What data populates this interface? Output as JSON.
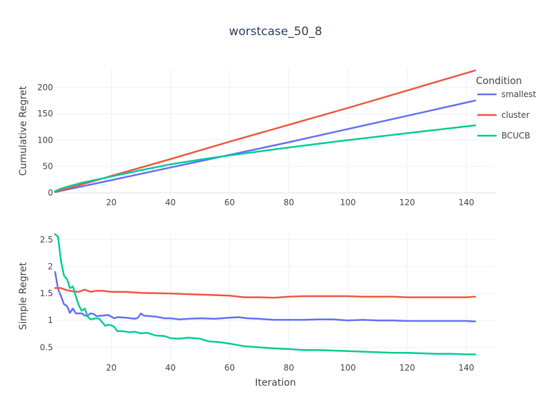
{
  "chart_data": {
    "type": "line",
    "title": "worstcase_50_8",
    "legend": {
      "title": "Condition",
      "placement": "top-right"
    },
    "colors": {
      "smallest": "#636efa",
      "cluster": "#ef553b",
      "BCUCB": "#00cc96"
    },
    "subplots": [
      {
        "ylabel": "Cumulative Regret",
        "xlim": [
          1,
          150
        ],
        "ylim": [
          0,
          235
        ],
        "xticks": [
          20,
          40,
          60,
          80,
          100,
          120,
          140
        ],
        "yticks": [
          0,
          50,
          100,
          150,
          200
        ],
        "grid": true,
        "series": [
          {
            "name": "smallest",
            "x": [
              1,
              20,
              40,
              60,
              80,
              100,
              120,
              143
            ],
            "values": [
              1.5,
              24,
              48,
              72,
              96,
              121,
              146,
              175
            ]
          },
          {
            "name": "cluster",
            "x": [
              1,
              20,
              40,
              60,
              80,
              100,
              120,
              143
            ],
            "values": [
              1.5,
              32,
              64,
              97,
              129,
              161,
              194,
              232
            ]
          },
          {
            "name": "BCUCB",
            "x": [
              1,
              3,
              6,
              10,
              15,
              20,
              30,
              40,
              50,
              60,
              80,
              100,
              120,
              143
            ],
            "values": [
              3,
              8,
              13,
              19,
              25,
              31,
              43,
              54,
              63,
              71,
              86,
              100,
              113,
              128
            ]
          }
        ]
      },
      {
        "ylabel": "Simple Regret",
        "xlabel": "Iteration",
        "xlim": [
          1,
          150
        ],
        "ylim": [
          0.3,
          2.6
        ],
        "xticks": [
          20,
          40,
          60,
          80,
          100,
          120,
          140
        ],
        "yticks": [
          0.5,
          1,
          1.5,
          2,
          2.5
        ],
        "ytick_labels": [
          "0.5",
          "1",
          "1.5",
          "2",
          "2.5"
        ],
        "grid": true,
        "series": [
          {
            "name": "smallest",
            "x": [
              1,
              2,
              3,
              4,
              5,
              6,
              7,
              8,
              10,
              11,
              12,
              13,
              14,
              15,
              17,
              19,
              21,
              22,
              25,
              28,
              29,
              30,
              31,
              35,
              38,
              40,
              43,
              46,
              50,
              55,
              60,
              63,
              66,
              70,
              75,
              80,
              85,
              90,
              95,
              100,
              105,
              110,
              115,
              120,
              125,
              130,
              135,
              140,
              143
            ],
            "values": [
              1.9,
              1.58,
              1.45,
              1.3,
              1.27,
              1.14,
              1.22,
              1.13,
              1.13,
              1.09,
              1.09,
              1.13,
              1.12,
              1.08,
              1.09,
              1.1,
              1.04,
              1.06,
              1.05,
              1.03,
              1.05,
              1.13,
              1.09,
              1.07,
              1.04,
              1.04,
              1.02,
              1.03,
              1.04,
              1.03,
              1.05,
              1.06,
              1.04,
              1.03,
              1.01,
              1.01,
              1.01,
              1.02,
              1.02,
              1.0,
              1.01,
              1.0,
              1.0,
              0.99,
              0.99,
              0.99,
              0.99,
              0.99,
              0.98
            ]
          },
          {
            "name": "cluster",
            "x": [
              1,
              3,
              5,
              7,
              9,
              11,
              13,
              15,
              17,
              20,
              25,
              30,
              40,
              50,
              60,
              65,
              70,
              75,
              80,
              85,
              90,
              95,
              100,
              105,
              110,
              115,
              120,
              125,
              130,
              135,
              140,
              143
            ],
            "values": [
              1.6,
              1.6,
              1.56,
              1.54,
              1.53,
              1.57,
              1.53,
              1.55,
              1.55,
              1.53,
              1.53,
              1.51,
              1.5,
              1.48,
              1.46,
              1.43,
              1.43,
              1.42,
              1.44,
              1.45,
              1.45,
              1.45,
              1.45,
              1.44,
              1.44,
              1.44,
              1.43,
              1.43,
              1.43,
              1.43,
              1.43,
              1.44
            ]
          },
          {
            "name": "BCUCB",
            "x": [
              1,
              2,
              3,
              4,
              5,
              6,
              7,
              8,
              9,
              10,
              11,
              12,
              13,
              14,
              15,
              16,
              17,
              18,
              19,
              20,
              21,
              22,
              24,
              26,
              28,
              30,
              32,
              35,
              38,
              40,
              43,
              46,
              50,
              53,
              56,
              60,
              65,
              70,
              75,
              80,
              85,
              90,
              95,
              100,
              105,
              110,
              115,
              120,
              125,
              130,
              135,
              140,
              143
            ],
            "values": [
              2.6,
              2.55,
              2.1,
              1.83,
              1.77,
              1.6,
              1.63,
              1.45,
              1.28,
              1.18,
              1.22,
              1.07,
              1.02,
              1.03,
              1.04,
              1.03,
              0.96,
              0.9,
              0.92,
              0.91,
              0.88,
              0.8,
              0.8,
              0.78,
              0.79,
              0.76,
              0.77,
              0.72,
              0.71,
              0.67,
              0.66,
              0.68,
              0.66,
              0.61,
              0.6,
              0.57,
              0.52,
              0.5,
              0.48,
              0.47,
              0.45,
              0.45,
              0.44,
              0.43,
              0.42,
              0.41,
              0.4,
              0.4,
              0.39,
              0.38,
              0.38,
              0.37,
              0.37
            ]
          }
        ]
      }
    ]
  }
}
